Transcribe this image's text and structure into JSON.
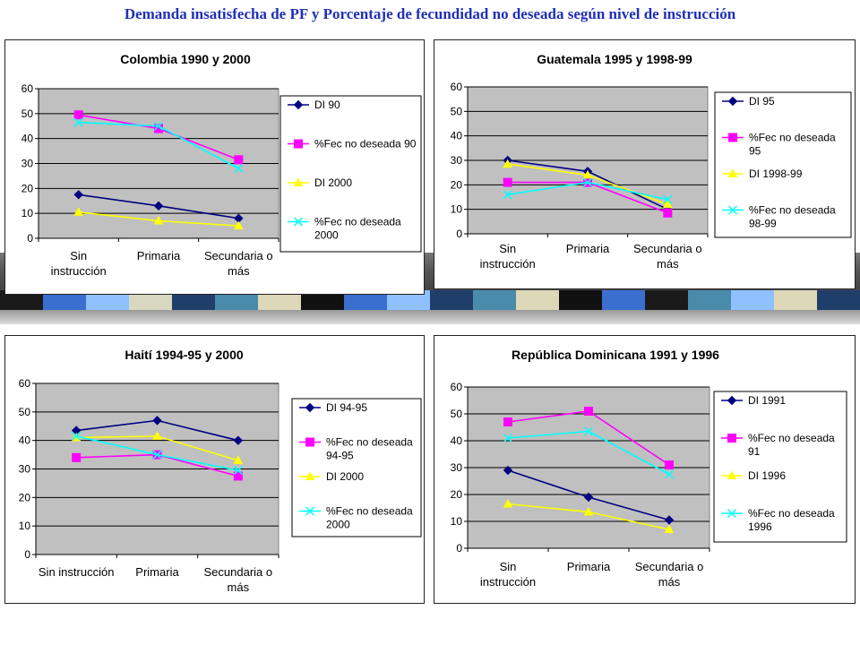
{
  "page": {
    "title": "Demanda insatisfecha de PF y Porcentaje de fecundidad no deseada según nivel de instrucción",
    "band_colors": [
      "#1a1a1a",
      "#3a6ecf",
      "#8fc0ff",
      "#d8d8c0",
      "#1f3f6a",
      "#4a8aaa",
      "#dcd8b8",
      "#101010",
      "#3a6ecf",
      "#8fc0ff",
      "#1f3f6a",
      "#4a8aaa",
      "#dcd8b8",
      "#101010",
      "#3a6ecf",
      "#1a1a1a",
      "#4a8aaa",
      "#8fc0ff",
      "#dcd8b8",
      "#1f3f6a"
    ]
  },
  "colors": {
    "navy": "#000080",
    "magenta": "#ff00ff",
    "yellow": "#ffff00",
    "cyan": "#00ffff",
    "plot_bg": "#c0c0c0"
  },
  "chart_data": [
    {
      "id": "colombia",
      "type": "line",
      "title": "Colombia 1990 y 2000",
      "categories": [
        [
          "Sin",
          "instrucción"
        ],
        [
          "Primaria"
        ],
        [
          "Secundaria o",
          "más"
        ]
      ],
      "ylim": [
        0,
        60
      ],
      "yticks": [
        0,
        10,
        20,
        30,
        40,
        50,
        60
      ],
      "grid": true,
      "legend": "right",
      "series": [
        {
          "name": [
            "DI 90"
          ],
          "values": [
            17.5,
            13,
            8
          ],
          "color": "#000080",
          "marker": "diamond"
        },
        {
          "name": [
            "%Fec no deseada 90"
          ],
          "values": [
            49.5,
            44,
            31.5
          ],
          "color": "#ff00ff",
          "marker": "square"
        },
        {
          "name": [
            "DI 2000"
          ],
          "values": [
            10.5,
            7,
            5
          ],
          "color": "#ffff00",
          "marker": "triangle"
        },
        {
          "name": [
            "%Fec no deseada",
            "2000"
          ],
          "values": [
            46.5,
            45,
            28
          ],
          "color": "#00ffff",
          "marker": "x"
        }
      ]
    },
    {
      "id": "guatemala",
      "type": "line",
      "title": "Guatemala 1995 y 1998-99",
      "categories": [
        [
          "Sin",
          "instrucción"
        ],
        [
          "Primaria"
        ],
        [
          "Secundaria o",
          "más"
        ]
      ],
      "ylim": [
        0,
        60
      ],
      "yticks": [
        0,
        10,
        20,
        30,
        40,
        50,
        60
      ],
      "grid": true,
      "legend": "right",
      "series": [
        {
          "name": [
            "DI 95"
          ],
          "values": [
            30,
            25.5,
            10
          ],
          "color": "#000080",
          "marker": "diamond"
        },
        {
          "name": [
            "%Fec no deseada",
            "95"
          ],
          "values": [
            21,
            21,
            8.5
          ],
          "color": "#ff00ff",
          "marker": "square"
        },
        {
          "name": [
            "DI 1998-99"
          ],
          "values": [
            28.5,
            24,
            12
          ],
          "color": "#ffff00",
          "marker": "triangle"
        },
        {
          "name": [
            "%Fec no deseada",
            "98-99"
          ],
          "values": [
            16,
            21,
            14
          ],
          "color": "#00ffff",
          "marker": "x"
        }
      ]
    },
    {
      "id": "haiti",
      "type": "line",
      "title": "Haití 1994-95 y 2000",
      "categories": [
        [
          "Sin instrucción"
        ],
        [
          "Primaria"
        ],
        [
          "Secundaria o",
          "más"
        ]
      ],
      "ylim": [
        0,
        60
      ],
      "yticks": [
        0,
        10,
        20,
        30,
        40,
        50,
        60
      ],
      "grid": true,
      "legend": "right",
      "series": [
        {
          "name": [
            "DI 94-95"
          ],
          "values": [
            43.5,
            47,
            40
          ],
          "color": "#000080",
          "marker": "diamond"
        },
        {
          "name": [
            "%Fec no deseada",
            "94-95"
          ],
          "values": [
            34,
            35,
            27.5
          ],
          "color": "#ff00ff",
          "marker": "square"
        },
        {
          "name": [
            "DI 2000"
          ],
          "values": [
            41,
            41.5,
            33
          ],
          "color": "#ffff00",
          "marker": "triangle"
        },
        {
          "name": [
            "%Fec no deseada",
            "2000"
          ],
          "values": [
            41.5,
            35,
            29.5
          ],
          "color": "#00ffff",
          "marker": "x"
        }
      ]
    },
    {
      "id": "republica-dominicana",
      "type": "line",
      "title": "República Dominicana 1991 y 1996",
      "categories": [
        [
          "Sin",
          "instrucción"
        ],
        [
          "Primaria"
        ],
        [
          "Secundaria o",
          "más"
        ]
      ],
      "ylim": [
        0,
        60
      ],
      "yticks": [
        0,
        10,
        20,
        30,
        40,
        50,
        60
      ],
      "grid": true,
      "legend": "right",
      "series": [
        {
          "name": [
            "DI 1991"
          ],
          "values": [
            29,
            19,
            10.5
          ],
          "color": "#000080",
          "marker": "diamond"
        },
        {
          "name": [
            "%Fec no deseada",
            "91"
          ],
          "values": [
            47,
            51,
            31
          ],
          "color": "#ff00ff",
          "marker": "square"
        },
        {
          "name": [
            "DI 1996"
          ],
          "values": [
            16.5,
            13.5,
            7
          ],
          "color": "#ffff00",
          "marker": "triangle"
        },
        {
          "name": [
            "%Fec no deseada",
            "1996"
          ],
          "values": [
            41,
            43.5,
            27.5
          ],
          "color": "#00ffff",
          "marker": "x"
        }
      ]
    }
  ]
}
